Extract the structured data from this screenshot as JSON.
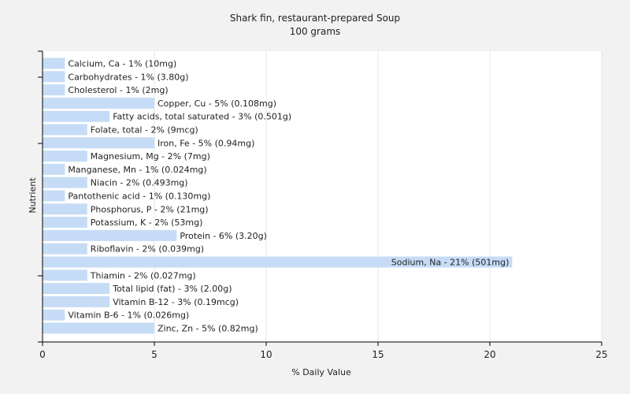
{
  "chart_data": {
    "type": "bar",
    "orientation": "horizontal",
    "title": "Shark fin, restaurant-prepared Soup",
    "subtitle": "100 grams",
    "xlabel": "% Daily Value",
    "ylabel": "Nutrient",
    "xlim": [
      0,
      25
    ],
    "xticks": [
      "0",
      "5",
      "10",
      "15",
      "20",
      "25"
    ],
    "grid": true,
    "colors": {
      "bar": "#c6dcf6",
      "plot_bg": "#ffffff",
      "grid": "#e6e6e6",
      "axis": "#000000"
    },
    "categories": [
      "Calcium, Ca",
      "Carbohydrates",
      "Cholesterol",
      "Copper, Cu",
      "Fatty acids, total saturated",
      "Folate, total",
      "Iron, Fe",
      "Magnesium, Mg",
      "Manganese, Mn",
      "Niacin",
      "Pantothenic acid",
      "Phosphorus, P",
      "Potassium, K",
      "Protein",
      "Riboflavin",
      "Sodium, Na",
      "Thiamin",
      "Total lipid (fat)",
      "Vitamin B-12",
      "Vitamin B-6",
      "Zinc, Zn"
    ],
    "values": [
      1,
      1,
      1,
      5,
      3,
      2,
      5,
      2,
      1,
      2,
      1,
      2,
      2,
      6,
      2,
      21,
      2,
      3,
      3,
      1,
      5
    ],
    "labels": [
      "Calcium, Ca - 1% (10mg)",
      "Carbohydrates - 1% (3.80g)",
      "Cholesterol - 1% (2mg)",
      "Copper, Cu - 5% (0.108mg)",
      "Fatty acids, total saturated - 3% (0.501g)",
      "Folate, total - 2% (9mcg)",
      "Iron, Fe - 5% (0.94mg)",
      "Magnesium, Mg - 2% (7mg)",
      "Manganese, Mn - 1% (0.024mg)",
      "Niacin - 2% (0.493mg)",
      "Pantothenic acid - 1% (0.130mg)",
      "Phosphorus, P - 2% (21mg)",
      "Potassium, K - 2% (53mg)",
      "Protein - 6% (3.20g)",
      "Riboflavin - 2% (0.039mg)",
      "Sodium, Na - 21% (501mg)",
      "Thiamin - 2% (0.027mg)",
      "Total lipid (fat) - 3% (2.00g)",
      "Vitamin B-12 - 3% (0.19mcg)",
      "Vitamin B-6 - 1% (0.026mg)",
      "Zinc, Zn - 5% (0.82mg)"
    ]
  }
}
